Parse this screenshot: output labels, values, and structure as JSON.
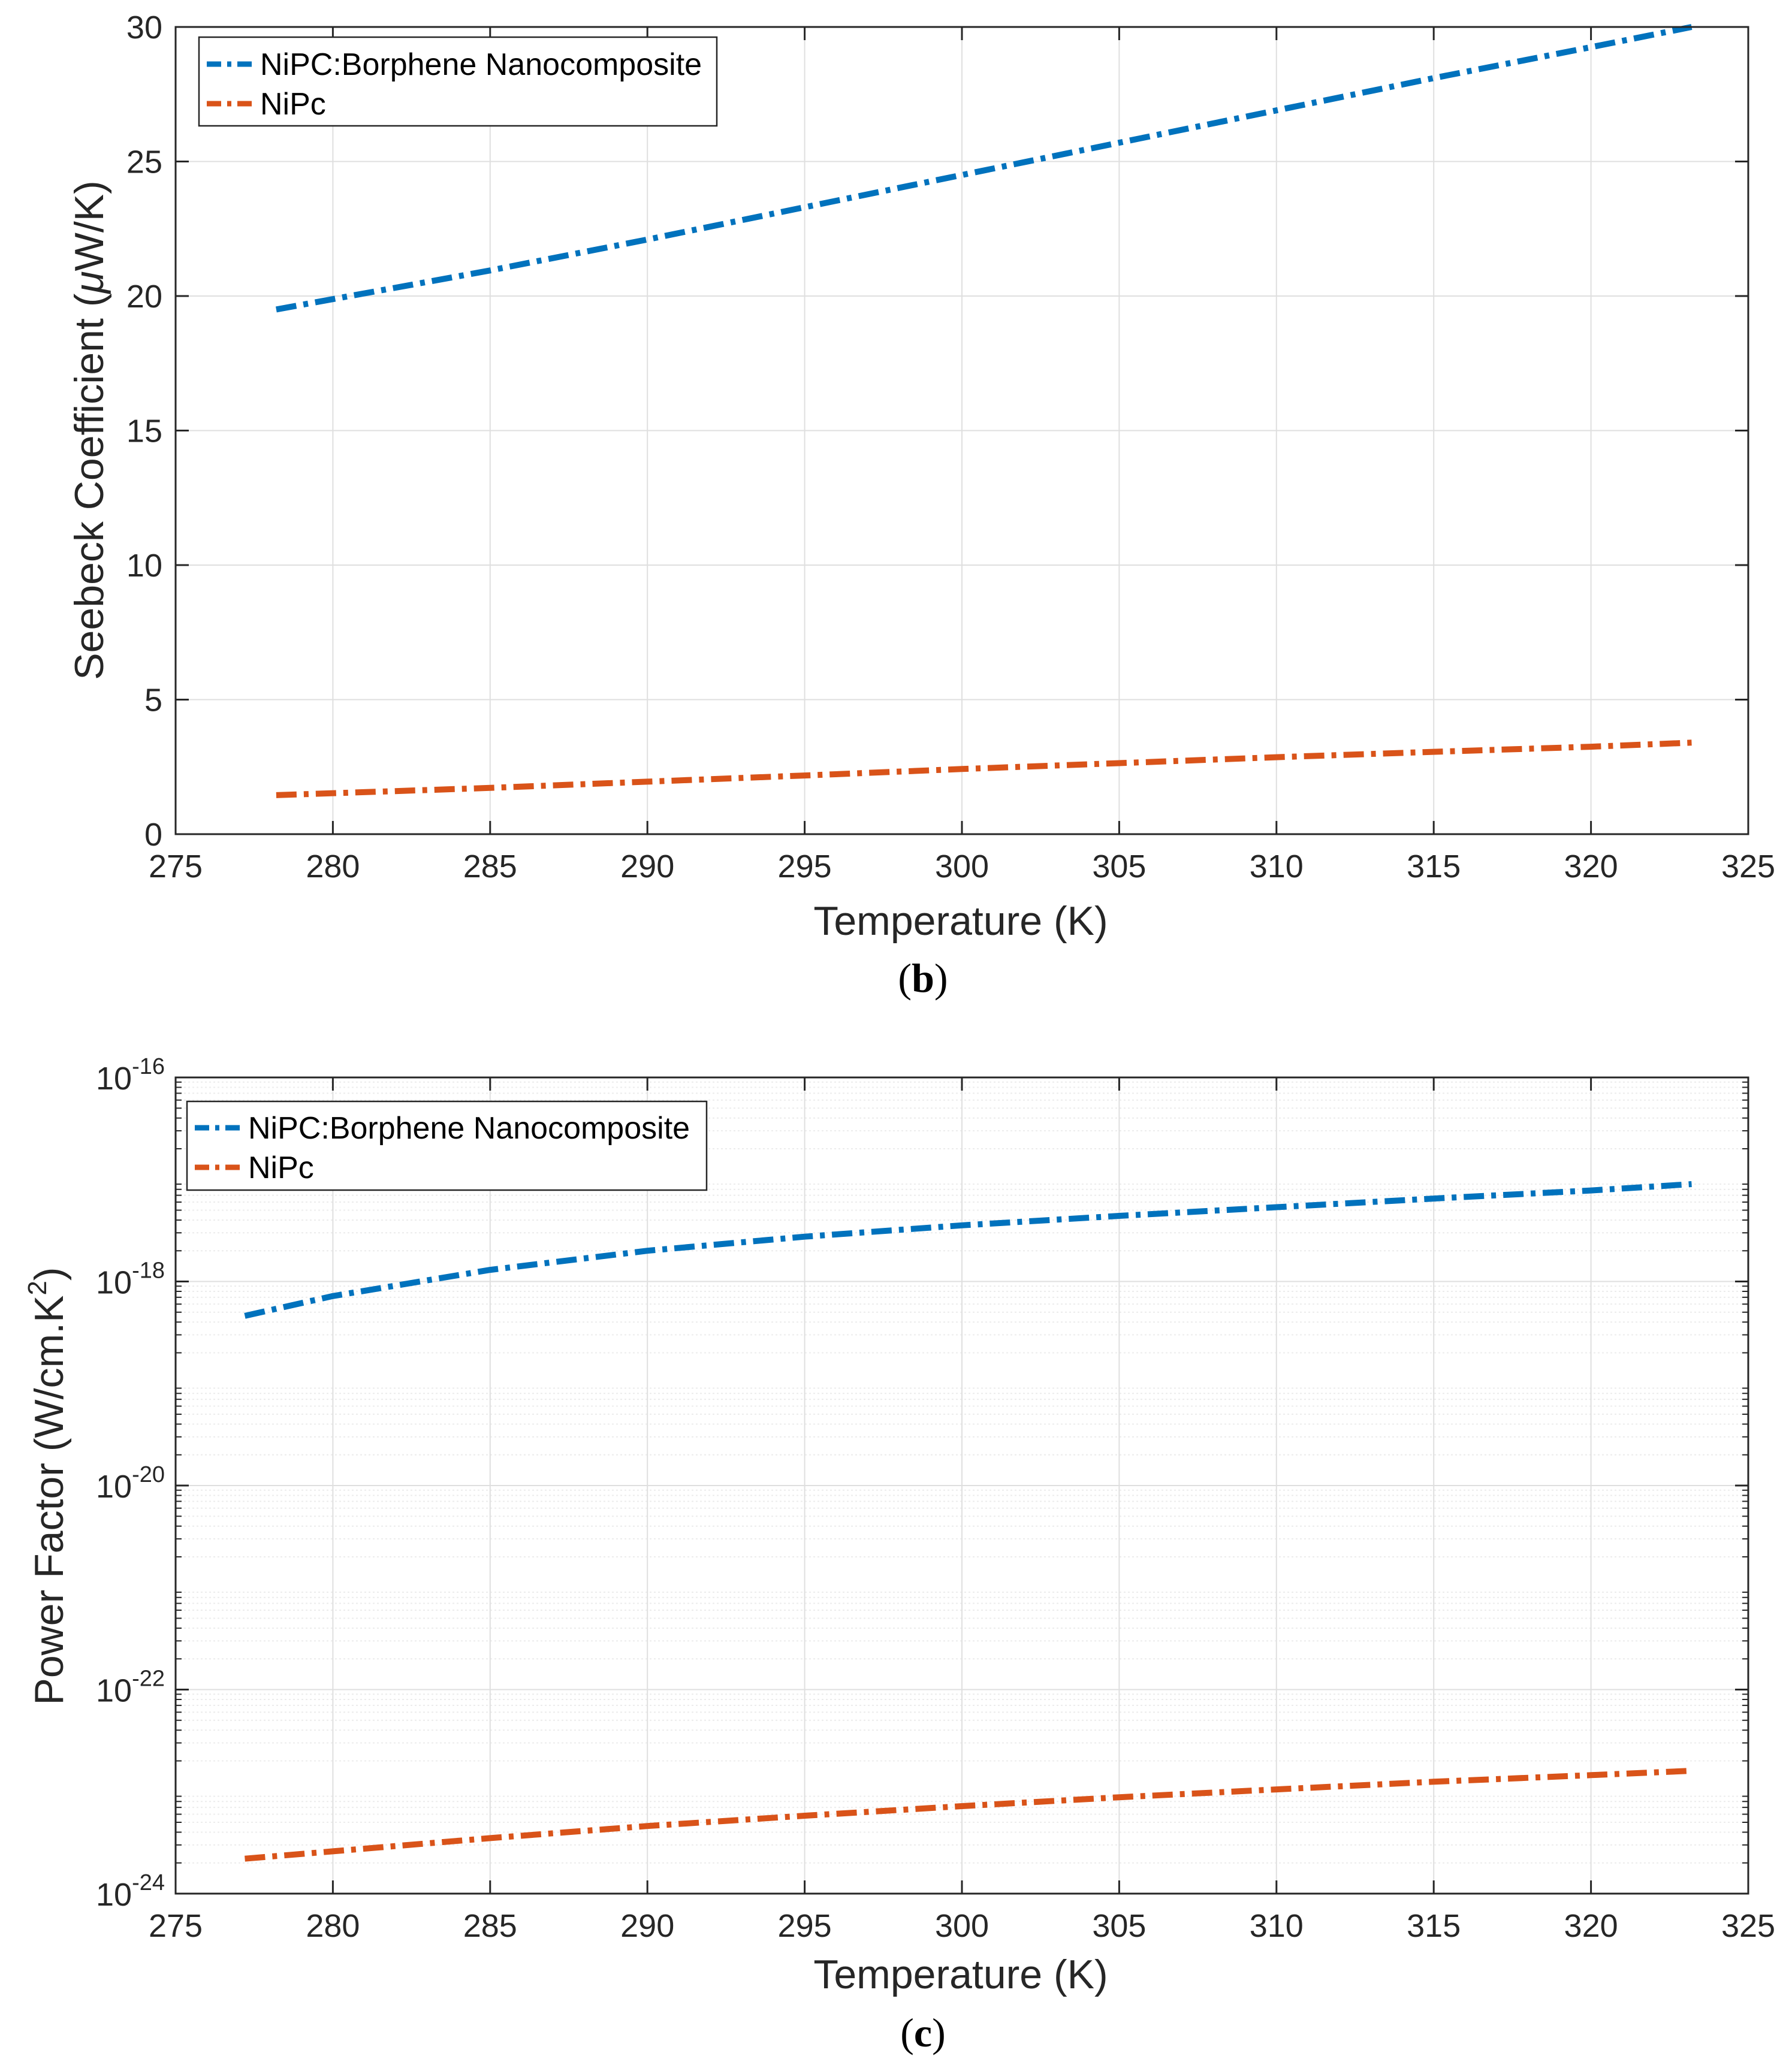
{
  "colors": {
    "composite": "#0072BD",
    "nipc": "#D95319",
    "axis": "#262626",
    "grid": "#dfdfdf",
    "minor_grid": "#ececec"
  },
  "chart_data": [
    {
      "type": "line",
      "panel_label": "b",
      "xlabel": "Temperature (K)",
      "ylabel_prefix": "Seebeck Coefficient (",
      "ylabel_mu": "μ",
      "ylabel_suffix": "W/K)",
      "xlim": [
        275,
        325
      ],
      "ylim": [
        0,
        30
      ],
      "yscale": "linear",
      "x_ticks": [
        275,
        280,
        285,
        290,
        295,
        300,
        305,
        310,
        315,
        320,
        325
      ],
      "y_ticks": [
        0,
        5,
        10,
        15,
        20,
        25,
        30
      ],
      "grid": true,
      "legend_position": "top-left",
      "series": [
        {
          "name": "NiPC:Borphene Nanocomposite",
          "color_key": "composite",
          "x": [
            278.2,
            285,
            290,
            295,
            300,
            305,
            310,
            315,
            320,
            323.2
          ],
          "y": [
            19.5,
            20.95,
            22.1,
            23.3,
            24.5,
            25.7,
            26.9,
            28.1,
            29.25,
            30.0
          ]
        },
        {
          "name": "NiPc",
          "color_key": "nipc",
          "x": [
            278.2,
            285,
            290,
            295,
            300,
            305,
            310,
            315,
            320,
            323.2
          ],
          "y": [
            1.45,
            1.72,
            1.95,
            2.18,
            2.42,
            2.64,
            2.86,
            3.06,
            3.25,
            3.4
          ]
        }
      ]
    },
    {
      "type": "line",
      "panel_label": "c",
      "xlabel": "Temperature (K)",
      "ylabel_prefix": "Power Factor (W/cm.K",
      "ylabel_sup": "2",
      "ylabel_suffix": ")",
      "xlim": [
        275,
        325
      ],
      "ylim": [
        1e-24,
        1e-16
      ],
      "yscale": "log",
      "x_ticks": [
        275,
        280,
        285,
        290,
        295,
        300,
        305,
        310,
        315,
        320,
        325
      ],
      "y_ticks": [
        {
          "base": "10",
          "exp": "-24",
          "value": -24
        },
        {
          "base": "10",
          "exp": "-22",
          "value": -22
        },
        {
          "base": "10",
          "exp": "-20",
          "value": -20
        },
        {
          "base": "10",
          "exp": "-18",
          "value": -18
        },
        {
          "base": "10",
          "exp": "-16",
          "value": -16
        }
      ],
      "grid": true,
      "legend_position": "top-left",
      "series": [
        {
          "name": "NiPC:Borphene Nanocomposite",
          "color_key": "composite",
          "x": [
            277.2,
            280,
            285,
            290,
            295,
            300,
            305,
            310,
            315,
            320,
            323.2
          ],
          "y": [
            4.6e-19,
            7.2e-19,
            1.3e-18,
            2e-18,
            2.75e-18,
            3.55e-18,
            4.4e-18,
            5.35e-18,
            6.5e-18,
            7.8e-18,
            9e-18
          ]
        },
        {
          "name": "NiPc",
          "color_key": "nipc",
          "x": [
            277.2,
            280,
            285,
            290,
            295,
            300,
            305,
            310,
            315,
            320,
            323.2
          ],
          "y": [
            2.2e-24,
            2.6e-24,
            3.5e-24,
            4.6e-24,
            5.8e-24,
            7.2e-24,
            8.8e-24,
            1.05e-23,
            1.25e-23,
            1.45e-23,
            1.6e-23
          ]
        }
      ]
    }
  ]
}
